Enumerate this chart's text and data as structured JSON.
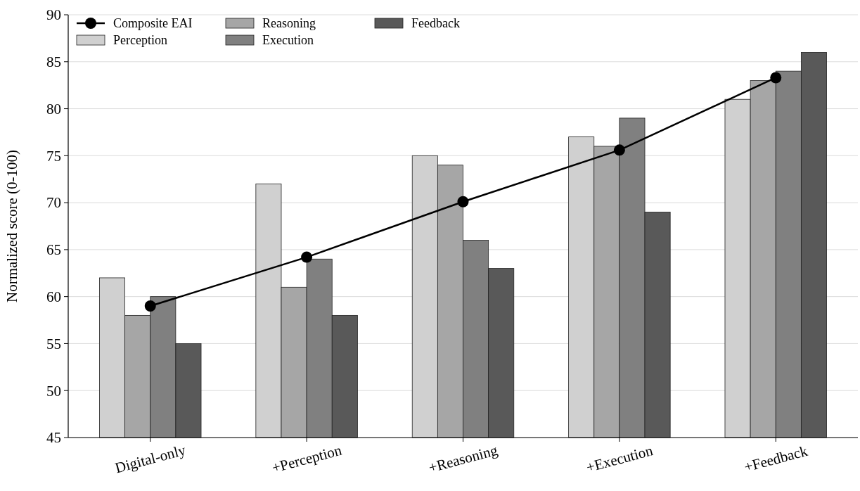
{
  "chart_data": {
    "type": "bar",
    "ylabel": "Normalized score (0-100)",
    "categories": [
      "Digital-only",
      "+Perception",
      "+Reasoning",
      "+Execution",
      "+Feedback"
    ],
    "series": [
      {
        "name": "Composite EAI",
        "type": "line",
        "color": "#000000",
        "values": [
          59,
          64.2,
          70.1,
          75.6,
          83.3
        ]
      },
      {
        "name": "Perception",
        "color": "#d0d0d0",
        "values": [
          62,
          72,
          75,
          77,
          81
        ]
      },
      {
        "name": "Reasoning",
        "color": "#a6a6a6",
        "values": [
          58,
          61,
          74,
          76,
          83
        ]
      },
      {
        "name": "Execution",
        "color": "#808080",
        "values": [
          60,
          64,
          66,
          79,
          84
        ]
      },
      {
        "name": "Feedback",
        "color": "#595959",
        "values": [
          55,
          58,
          63,
          69,
          86
        ]
      }
    ],
    "ylim": [
      45,
      90
    ],
    "yticks": [
      45,
      50,
      55,
      60,
      65,
      70,
      75,
      80,
      85,
      90
    ],
    "grid": "y",
    "legend": "top left",
    "marker": "circle",
    "line_style": "solid"
  }
}
